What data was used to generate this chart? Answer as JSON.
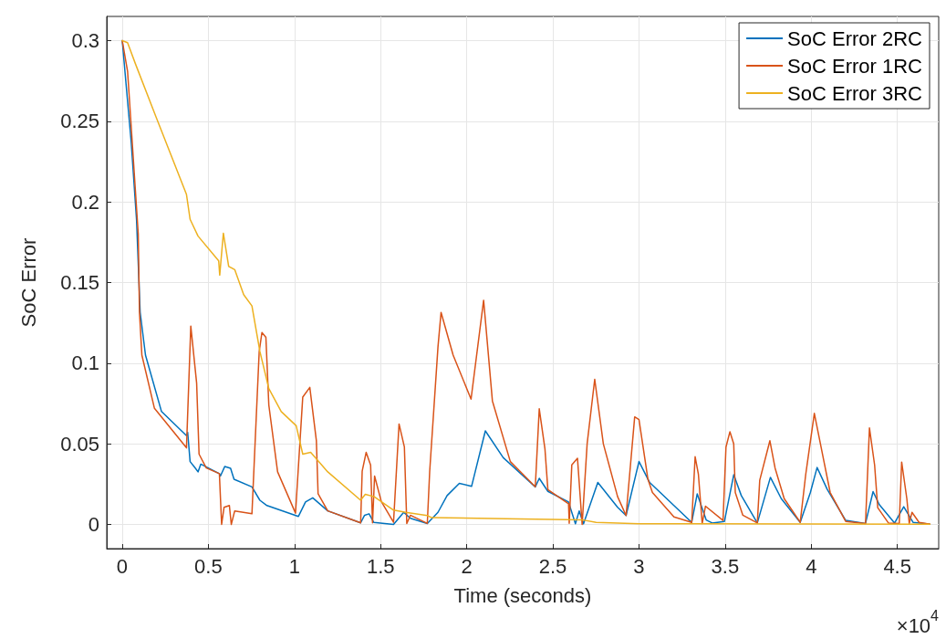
{
  "chart_data": {
    "type": "line",
    "xlabel": "Time (seconds)",
    "ylabel": "SoC Error",
    "xlim": [
      -0.09,
      4.74
    ],
    "xticks": [
      0,
      0.5,
      1,
      1.5,
      2,
      2.5,
      3,
      3.5,
      4,
      4.5
    ],
    "ylim": [
      -0.015,
      0.315
    ],
    "yticks": [
      0,
      0.05,
      0.1,
      0.15,
      0.2,
      0.25,
      0.3
    ],
    "grid": true,
    "legend": "top right",
    "annotations": [
      "×10$^{4}$"
    ],
    "series": [
      {
        "name": "SoC Error 2RC",
        "color": "#0072bd",
        "x": [
          0,
          0.052,
          0.083,
          0.104,
          0.135,
          0.228,
          0.373,
          0.38,
          0.394,
          0.425,
          0.44,
          0.456,
          0.564,
          0.57,
          0.595,
          0.629,
          0.649,
          0.753,
          0.799,
          0.84,
          1.023,
          1.064,
          1.106,
          1.193,
          1.384,
          1.407,
          1.433,
          1.46,
          1.575,
          1.634,
          1.673,
          1.771,
          1.833,
          1.886,
          1.957,
          2.028,
          2.108,
          2.212,
          2.398,
          2.421,
          2.471,
          2.591,
          2.631,
          2.653,
          2.678,
          2.761,
          2.876,
          2.925,
          3.0,
          3.062,
          3.306,
          3.338,
          3.39,
          3.425,
          3.496,
          3.55,
          3.594,
          3.687,
          3.763,
          3.826,
          3.936,
          3.995,
          4.034,
          4.093,
          4.2,
          4.315,
          4.359,
          4.395,
          4.484,
          4.537,
          4.591,
          4.689
        ],
        "values": [
          0.3,
          0.237,
          0.189,
          0.1316,
          0.105,
          0.07,
          0.055,
          0.057,
          0.039,
          0.0348,
          0.0326,
          0.0374,
          0.0315,
          0.03,
          0.0359,
          0.0348,
          0.028,
          0.0233,
          0.015,
          0.0117,
          0.005,
          0.0139,
          0.0165,
          0.0084,
          0.001,
          0.0057,
          0.0066,
          0.0013,
          0,
          0.0075,
          0.0038,
          0.0006,
          0.0075,
          0.0179,
          0.0255,
          0.0236,
          0.058,
          0.0414,
          0.0233,
          0.0286,
          0.0205,
          0.0139,
          0.0004,
          0.0084,
          0.0004,
          0.026,
          0.0106,
          0.0055,
          0.039,
          0.026,
          0.0013,
          0.0189,
          0.0028,
          0.0009,
          0.0019,
          0.0308,
          0.0179,
          0.0009,
          0.0292,
          0.016,
          0.0013,
          0.0198,
          0.0353,
          0.0217,
          0.0025,
          0.0006,
          0.0204,
          0.0123,
          0.0009,
          0.011,
          0.0013,
          0.0002
        ]
      },
      {
        "name": "SoC Error 1RC",
        "color": "#d95319",
        "x": [
          0,
          0.031,
          0.093,
          0.1,
          0.114,
          0.187,
          0.373,
          0.398,
          0.432,
          0.446,
          0.488,
          0.564,
          0.577,
          0.591,
          0.622,
          0.633,
          0.653,
          0.753,
          0.795,
          0.811,
          0.834,
          0.851,
          0.902,
          1.006,
          1.048,
          1.089,
          1.127,
          1.137,
          1.193,
          1.384,
          1.393,
          1.416,
          1.442,
          1.453,
          1.465,
          1.504,
          1.575,
          1.607,
          1.638,
          1.652,
          1.673,
          1.771,
          1.785,
          1.833,
          1.851,
          1.921,
          2.025,
          2.098,
          2.149,
          2.253,
          2.398,
          2.421,
          2.454,
          2.471,
          2.591,
          2.595,
          2.61,
          2.643,
          2.67,
          2.699,
          2.743,
          2.793,
          2.876,
          2.925,
          2.975,
          3.0,
          3.052,
          3.078,
          3.203,
          3.306,
          3.326,
          3.345,
          3.367,
          3.386,
          3.488,
          3.505,
          3.528,
          3.55,
          3.559,
          3.603,
          3.687,
          3.701,
          3.76,
          3.79,
          3.843,
          3.936,
          3.968,
          4.018,
          4.057,
          4.11,
          4.2,
          4.315,
          4.338,
          4.368,
          4.386,
          4.448,
          4.511,
          4.525,
          4.555,
          4.569,
          4.585,
          4.626,
          4.689
        ],
        "values": [
          0.3,
          0.281,
          0.18,
          0.1316,
          0.105,
          0.072,
          0.0475,
          0.123,
          0.0875,
          0.0436,
          0.035,
          0.0315,
          0,
          0.0106,
          0.0117,
          0,
          0.0084,
          0.0066,
          0.107,
          0.119,
          0.116,
          0.074,
          0.0326,
          0.007,
          0.079,
          0.085,
          0.052,
          0.019,
          0.0084,
          0.001,
          0.033,
          0.0447,
          0.0368,
          0.001,
          0.03,
          0.0142,
          0.0013,
          0.0623,
          0.048,
          0.0006,
          0.0057,
          0.0006,
          0.033,
          0.11,
          0.1315,
          0.105,
          0.0777,
          0.139,
          0.0766,
          0.039,
          0.0233,
          0.0717,
          0.0469,
          0.0216,
          0.0128,
          0.0007,
          0.037,
          0.041,
          0,
          0.05,
          0.09,
          0.05,
          0.0172,
          0.0055,
          0.0667,
          0.065,
          0.028,
          0.0198,
          0.0047,
          0.0013,
          0.042,
          0.031,
          0.0006,
          0.0113,
          0.0025,
          0.048,
          0.0575,
          0.05,
          0.0198,
          0.0057,
          0.0009,
          0.0274,
          0.0519,
          0.035,
          0.016,
          0.0013,
          0.031,
          0.0689,
          0.048,
          0.0198,
          0.0019,
          0.0006,
          0.0598,
          0.0368,
          0.0104,
          0.0009,
          0.0006,
          0.0387,
          0.016,
          0.0006,
          0.0075,
          0.0013,
          0.0002
        ]
      },
      {
        "name": "SoC Error 3RC",
        "color": "#edb120",
        "x": [
          0,
          0.031,
          0.077,
          0.197,
          0.373,
          0.394,
          0.44,
          0.56,
          0.566,
          0.587,
          0.618,
          0.653,
          0.705,
          0.753,
          0.799,
          0.851,
          0.923,
          1.01,
          1.048,
          1.094,
          1.193,
          1.384,
          1.411,
          1.463,
          1.575,
          1.646,
          1.771,
          1.797,
          2.313,
          2.668,
          2.751,
          3.0,
          4.689
        ],
        "values": [
          0.3,
          0.2987,
          0.2855,
          0.2525,
          0.2046,
          0.1892,
          0.1788,
          0.1634,
          0.1546,
          0.1806,
          0.16,
          0.158,
          0.1425,
          0.1355,
          0.1073,
          0.0843,
          0.07,
          0.0612,
          0.0436,
          0.0447,
          0.0326,
          0.015,
          0.0187,
          0.0172,
          0.0089,
          0.0075,
          0.0055,
          0.0042,
          0.0034,
          0.0029,
          0.0013,
          0.0004,
          0.0002
        ]
      }
    ]
  }
}
